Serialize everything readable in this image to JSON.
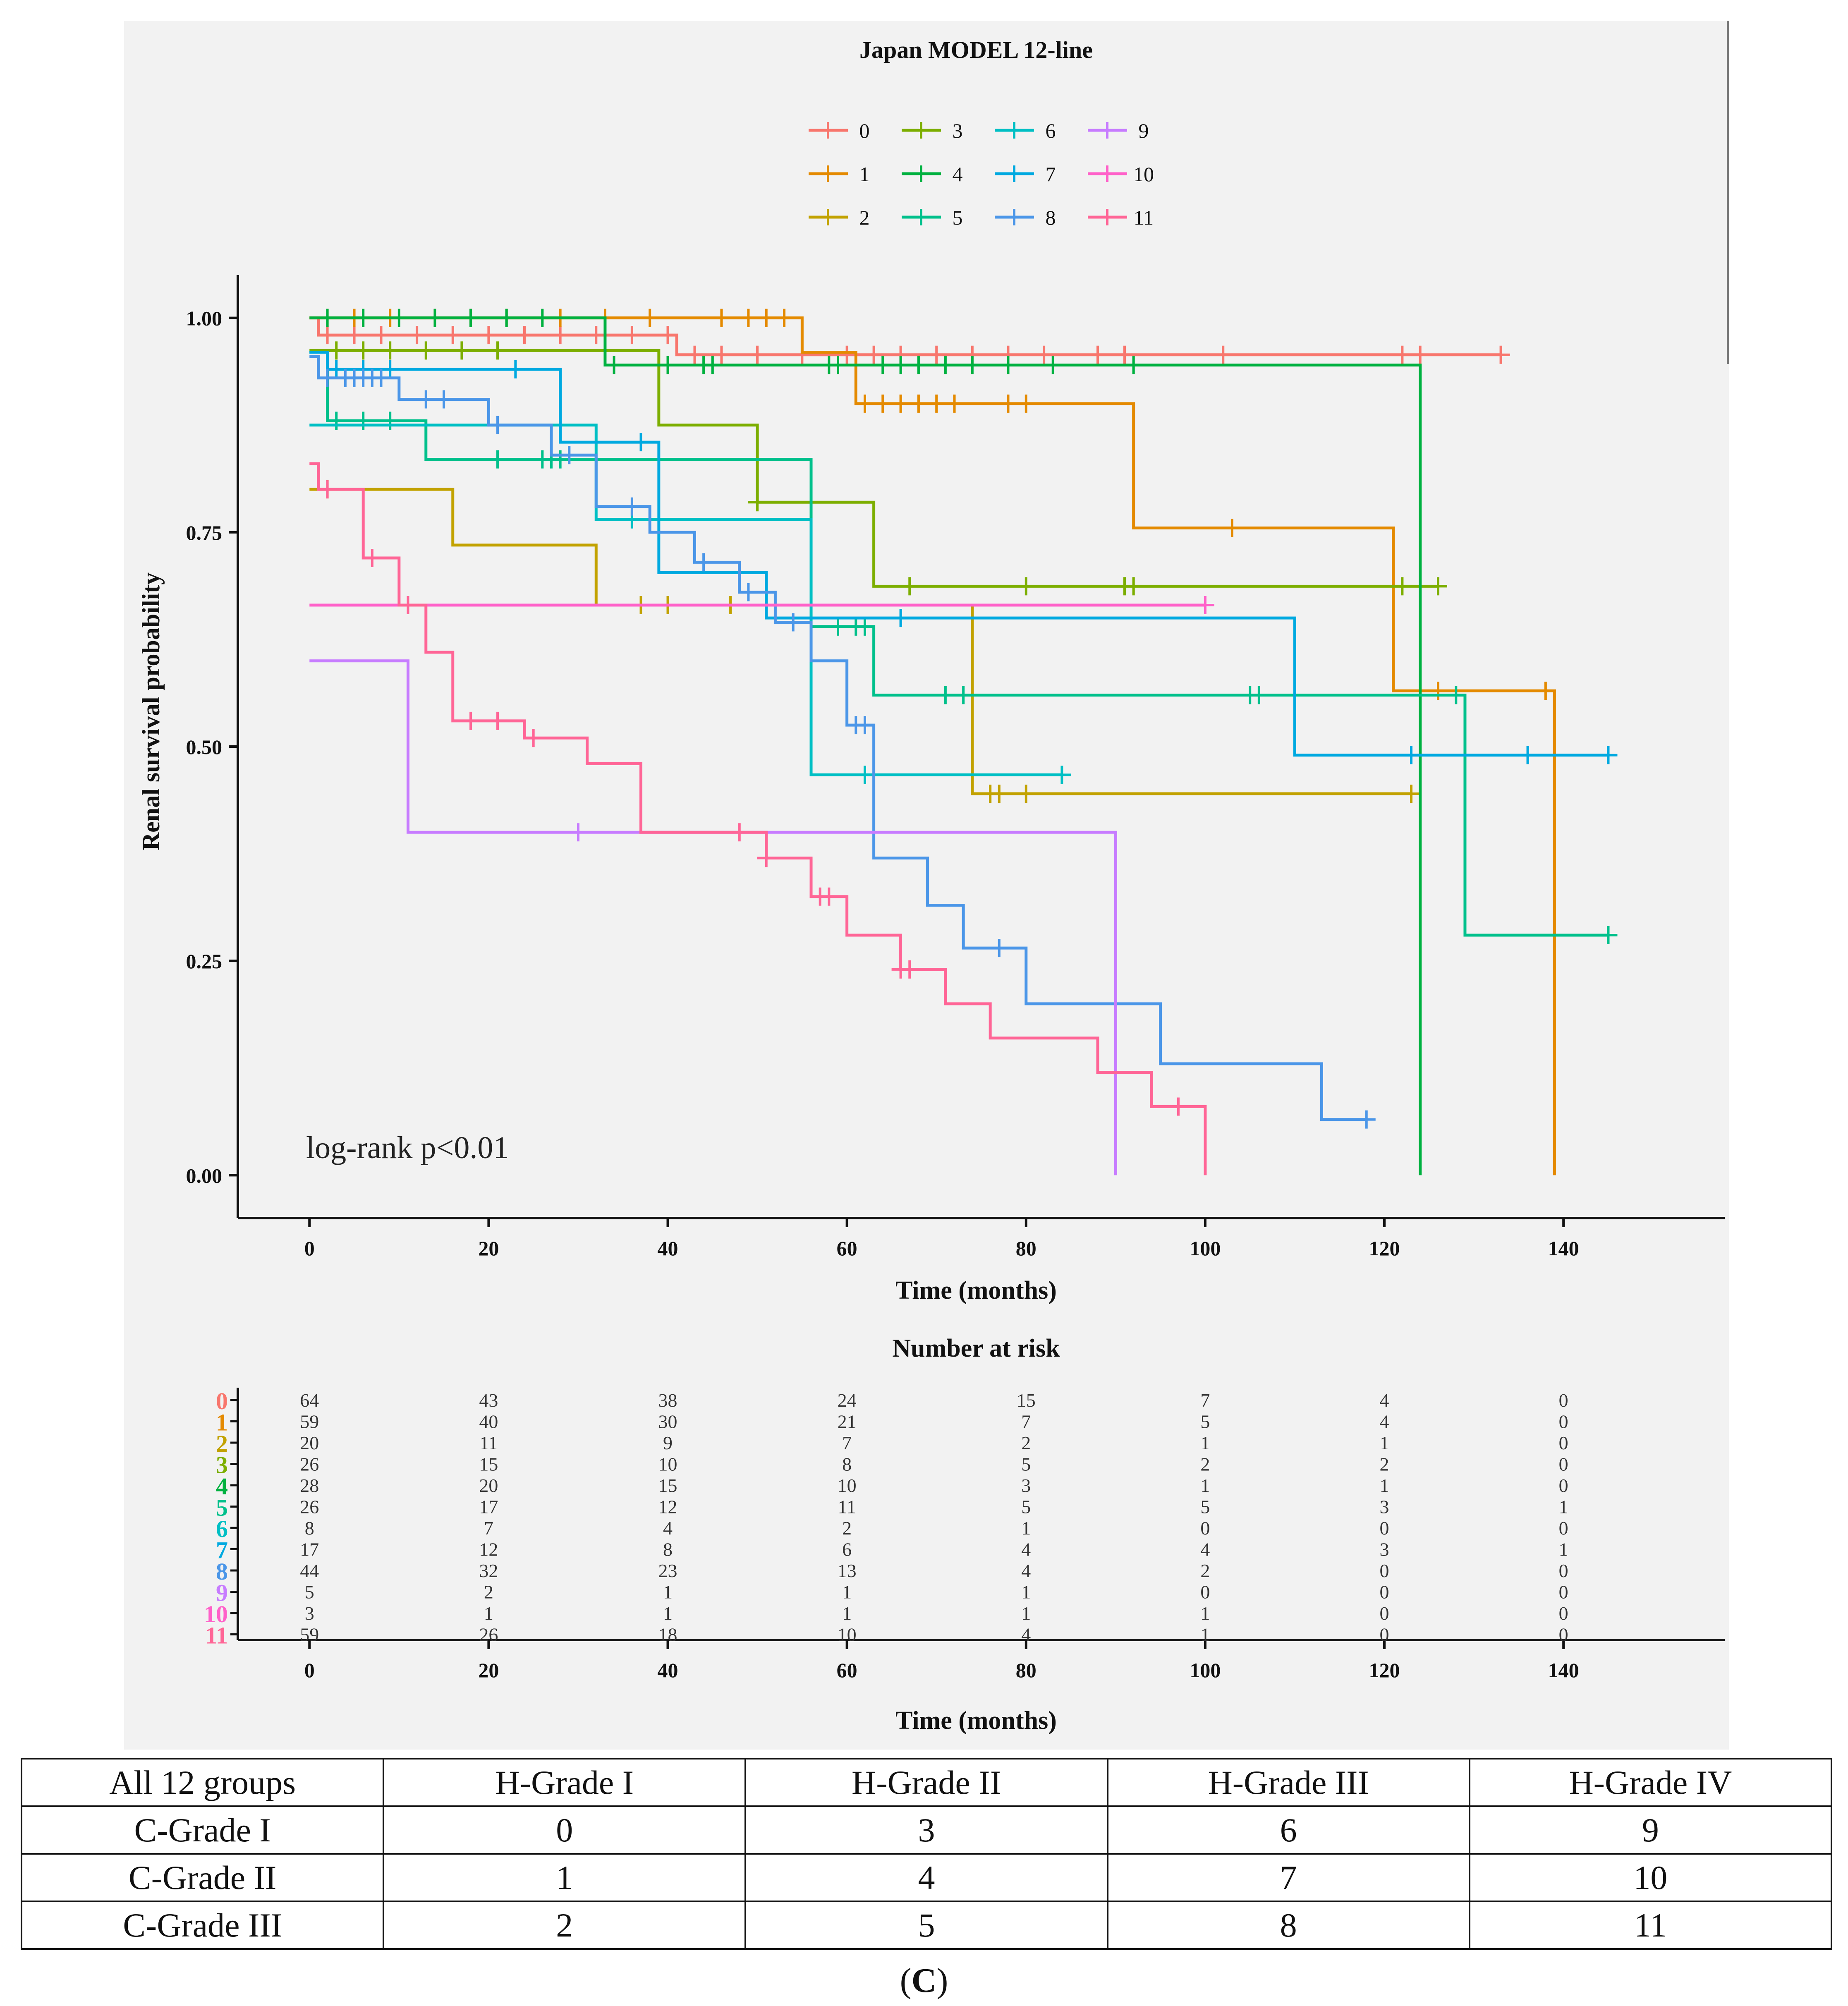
{
  "colors": {
    "panel_bg": "#f2f2f2",
    "axis": "#111111",
    "groups": [
      "#f8766d",
      "#e48a00",
      "#c2a200",
      "#7cae00",
      "#00b140",
      "#00c08b",
      "#00bfc4",
      "#00a9e0",
      "#4b96e8",
      "#c77cff",
      "#ff61c9",
      "#ff6596"
    ]
  },
  "chart_data": [
    {
      "type": "line",
      "subtype": "kaplan-meier step",
      "title": "Japan MODEL 12-line",
      "xlabel": "Time (months)",
      "ylabel": "Renal survival probability",
      "xlim": [
        -8,
        158
      ],
      "ylim": [
        -0.05,
        1.05
      ],
      "x_ticks": [
        "0",
        "20",
        "40",
        "60",
        "80",
        "100",
        "120",
        "140"
      ],
      "y_ticks": [
        "0.00",
        "0.25",
        "0.50",
        "0.75",
        "1.00"
      ],
      "legend": [
        "0",
        "1",
        "2",
        "3",
        "4",
        "5",
        "6",
        "7",
        "8",
        "9",
        "10",
        "11"
      ],
      "legend_position": "top",
      "annotation": "log-rank p<0.01",
      "series": [
        {
          "name": "0",
          "steps": [
            [
              0,
              1.0
            ],
            [
              1,
              0.98
            ],
            [
              41,
              0.957
            ],
            [
              133,
              0.957
            ]
          ],
          "censor": [
            2,
            5,
            8,
            12,
            16,
            20,
            24,
            28,
            32,
            36,
            40,
            43,
            46,
            50,
            55,
            60,
            63,
            66,
            70,
            74,
            78,
            82,
            88,
            91,
            102,
            122,
            124,
            133
          ]
        },
        {
          "name": "1",
          "steps": [
            [
              0,
              1.0
            ],
            [
              55,
              0.96
            ],
            [
              61,
              0.9
            ],
            [
              92,
              0.755
            ],
            [
              121,
              0.565
            ],
            [
              139,
              0.0
            ]
          ],
          "censor": [
            2,
            5,
            9,
            14,
            18,
            22,
            28,
            33,
            38,
            46,
            49,
            51,
            53,
            62,
            64,
            66,
            68,
            70,
            72,
            78,
            80,
            103,
            126,
            138
          ]
        },
        {
          "name": "2",
          "steps": [
            [
              0,
              0.8
            ],
            [
              16,
              0.735
            ],
            [
              32,
              0.665
            ],
            [
              74,
              0.445
            ],
            [
              123,
              0.445
            ]
          ],
          "censor": [
            2,
            37,
            40,
            47,
            76,
            77,
            80,
            123
          ]
        },
        {
          "name": "3",
          "steps": [
            [
              0,
              0.962
            ],
            [
              39,
              0.875
            ],
            [
              50,
              0.785
            ],
            [
              63,
              0.687
            ],
            [
              126,
              0.687
            ]
          ],
          "censor": [
            3,
            6,
            9,
            13,
            17,
            21,
            50,
            67,
            80,
            91,
            92,
            122,
            126
          ]
        },
        {
          "name": "4",
          "steps": [
            [
              0,
              1.0
            ],
            [
              33,
              0.945
            ],
            [
              124,
              0.945
            ],
            [
              124,
              0.0
            ]
          ],
          "censor": [
            2,
            6,
            10,
            14,
            18,
            22,
            26,
            34,
            40,
            44,
            45,
            58,
            59,
            64,
            66,
            68,
            71,
            74,
            78,
            83,
            92
          ]
        },
        {
          "name": "5",
          "steps": [
            [
              0,
              0.96
            ],
            [
              2,
              0.88
            ],
            [
              13,
              0.835
            ],
            [
              56,
              0.64
            ],
            [
              63,
              0.56
            ],
            [
              129,
              0.28
            ],
            [
              145,
              0.28
            ]
          ],
          "censor": [
            3,
            6,
            9,
            21,
            26,
            27,
            28,
            59,
            61,
            62,
            71,
            73,
            105,
            106,
            128,
            145
          ]
        },
        {
          "name": "6",
          "steps": [
            [
              0,
              0.875
            ],
            [
              32,
              0.765
            ],
            [
              56,
              0.467
            ],
            [
              84,
              0.467
            ]
          ],
          "censor": [
            36,
            62,
            84
          ]
        },
        {
          "name": "7",
          "steps": [
            [
              0,
              0.96
            ],
            [
              2,
              0.94
            ],
            [
              28,
              0.855
            ],
            [
              39,
              0.703
            ],
            [
              51,
              0.65
            ],
            [
              110,
              0.49
            ],
            [
              145,
              0.49
            ]
          ],
          "censor": [
            3,
            6,
            9,
            23,
            37,
            66,
            123,
            136,
            145
          ]
        },
        {
          "name": "8",
          "steps": [
            [
              0,
              0.955
            ],
            [
              1,
              0.93
            ],
            [
              10,
              0.905
            ],
            [
              20,
              0.875
            ],
            [
              27,
              0.84
            ],
            [
              32,
              0.78
            ],
            [
              38,
              0.75
            ],
            [
              43,
              0.715
            ],
            [
              48,
              0.68
            ],
            [
              52,
              0.645
            ],
            [
              56,
              0.6
            ],
            [
              60,
              0.525
            ],
            [
              63,
              0.37
            ],
            [
              69,
              0.315
            ],
            [
              73,
              0.265
            ],
            [
              80,
              0.2
            ],
            [
              95,
              0.13
            ],
            [
              113,
              0.065
            ],
            [
              118,
              0.065
            ]
          ],
          "censor": [
            2,
            4,
            5,
            6,
            7,
            8,
            13,
            15,
            21,
            29,
            36,
            44,
            49,
            54,
            61,
            62,
            77,
            118
          ]
        },
        {
          "name": "9",
          "steps": [
            [
              0,
              0.6
            ],
            [
              11,
              0.4
            ],
            [
              90,
              0.4
            ],
            [
              90,
              0.0
            ]
          ],
          "censor": [
            30
          ]
        },
        {
          "name": "10",
          "steps": [
            [
              0,
              0.665
            ],
            [
              100,
              0.665
            ]
          ],
          "censor": [
            100
          ]
        },
        {
          "name": "11",
          "steps": [
            [
              0,
              0.83
            ],
            [
              1,
              0.8
            ],
            [
              6,
              0.72
            ],
            [
              10,
              0.665
            ],
            [
              13,
              0.61
            ],
            [
              16,
              0.53
            ],
            [
              24,
              0.51
            ],
            [
              31,
              0.48
            ],
            [
              37,
              0.4
            ],
            [
              51,
              0.37
            ],
            [
              56,
              0.325
            ],
            [
              60,
              0.28
            ],
            [
              66,
              0.24
            ],
            [
              71,
              0.2
            ],
            [
              76,
              0.16
            ],
            [
              88,
              0.12
            ],
            [
              94,
              0.08
            ],
            [
              100,
              0.0
            ]
          ],
          "censor": [
            2,
            7,
            11,
            18,
            21,
            25,
            48,
            51,
            57,
            58,
            66,
            67,
            97
          ]
        }
      ]
    },
    {
      "type": "table",
      "title": "Number at risk",
      "xlabel": "Time (months)",
      "x_ticks": [
        "0",
        "20",
        "40",
        "60",
        "80",
        "100",
        "120",
        "140"
      ],
      "rows": [
        {
          "group": "0",
          "counts": [
            "64",
            "43",
            "38",
            "24",
            "15",
            "7",
            "4",
            "0"
          ]
        },
        {
          "group": "1",
          "counts": [
            "59",
            "40",
            "30",
            "21",
            "7",
            "5",
            "4",
            "0"
          ]
        },
        {
          "group": "2",
          "counts": [
            "20",
            "11",
            "9",
            "7",
            "2",
            "1",
            "1",
            "0"
          ]
        },
        {
          "group": "3",
          "counts": [
            "26",
            "15",
            "10",
            "8",
            "5",
            "2",
            "2",
            "0"
          ]
        },
        {
          "group": "4",
          "counts": [
            "28",
            "20",
            "15",
            "10",
            "3",
            "1",
            "1",
            "0"
          ]
        },
        {
          "group": "5",
          "counts": [
            "26",
            "17",
            "12",
            "11",
            "5",
            "5",
            "3",
            "1"
          ]
        },
        {
          "group": "6",
          "counts": [
            "8",
            "7",
            "4",
            "2",
            "1",
            "0",
            "0",
            "0"
          ]
        },
        {
          "group": "7",
          "counts": [
            "17",
            "12",
            "8",
            "6",
            "4",
            "4",
            "3",
            "1"
          ]
        },
        {
          "group": "8",
          "counts": [
            "44",
            "32",
            "23",
            "13",
            "4",
            "2",
            "0",
            "0"
          ]
        },
        {
          "group": "9",
          "counts": [
            "5",
            "2",
            "1",
            "1",
            "1",
            "0",
            "0",
            "0"
          ]
        },
        {
          "group": "10",
          "counts": [
            "3",
            "1",
            "1",
            "1",
            "1",
            "1",
            "0",
            "0"
          ]
        },
        {
          "group": "11",
          "counts": [
            "59",
            "26",
            "18",
            "10",
            "4",
            "1",
            "0",
            "0"
          ]
        }
      ]
    }
  ],
  "grouping_table": {
    "header": [
      "All 12 groups",
      "H-Grade I",
      "H-Grade II",
      "H-Grade III",
      "H-Grade IV"
    ],
    "rows": [
      [
        "C-Grade I",
        "0",
        "3",
        "6",
        "9"
      ],
      [
        "C-Grade II",
        "1",
        "4",
        "7",
        "10"
      ],
      [
        "C-Grade III",
        "2",
        "5",
        "8",
        "11"
      ]
    ]
  },
  "caption": {
    "open": "(",
    "letter": "C",
    "close": ")"
  }
}
